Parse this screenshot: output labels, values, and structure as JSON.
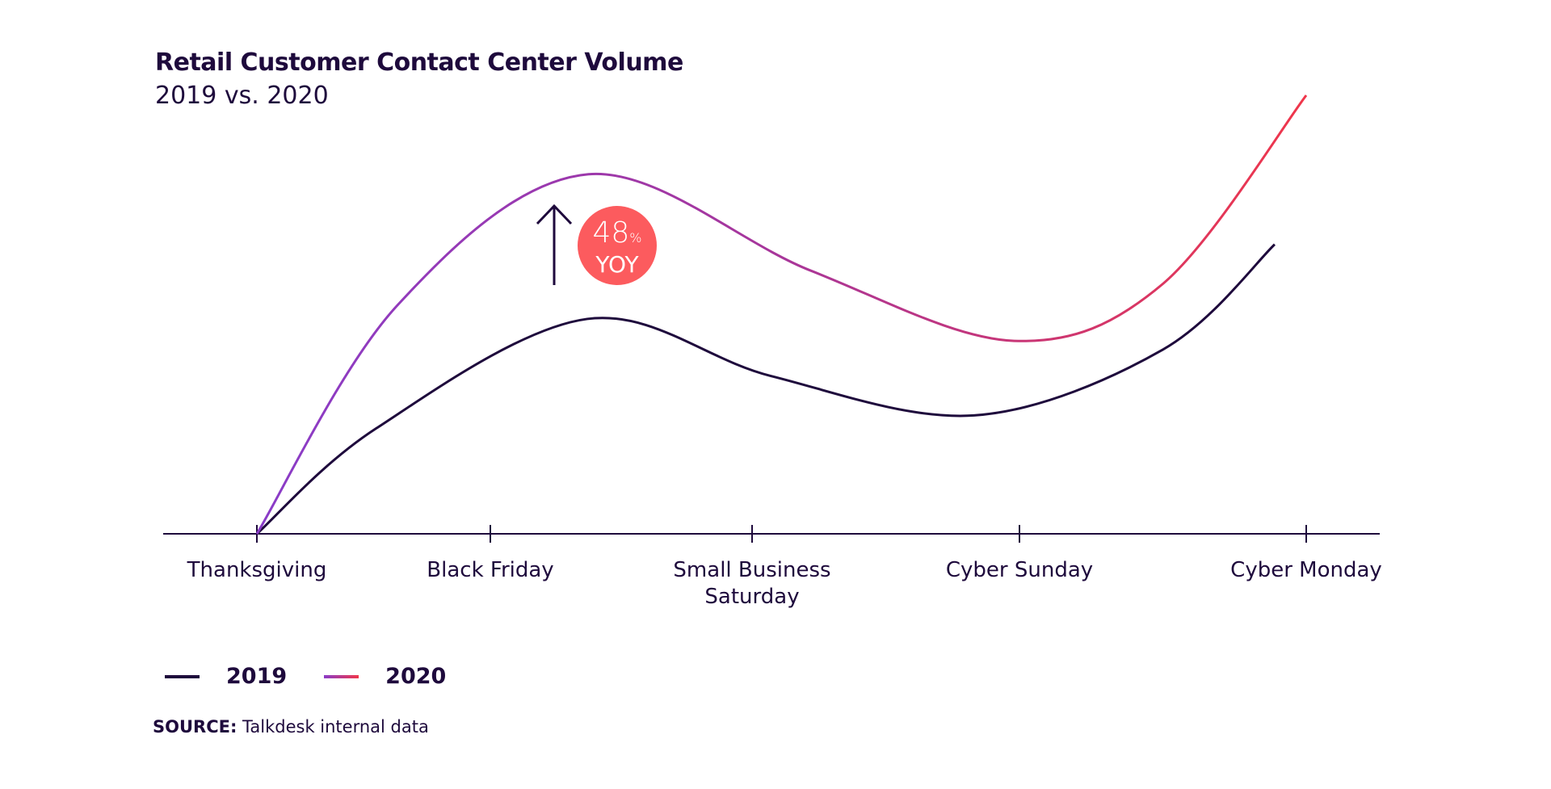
{
  "title": "Retail Customer Contact Center Volume",
  "subtitle": "2019 vs. 2020",
  "annotation": {
    "value": "48",
    "unit": "%",
    "label": "YOY"
  },
  "source": {
    "label": "SOURCE:",
    "text": "Talkdesk internal data"
  },
  "colors": {
    "2019": "#1e0a3c",
    "2020_start": "#8a3cc8",
    "2020_mid": "#a8369a",
    "2020_end": "#f0364a",
    "badge": "#fc5b5e",
    "axis": "#1e0a3c"
  },
  "chart_data": {
    "type": "line",
    "title": "Retail Customer Contact Center Volume",
    "subtitle": "2019 vs. 2020",
    "categories": [
      "Thanksgiving",
      "Black Friday",
      "Small Business Saturday",
      "Cyber Sunday",
      "Cyber Monday"
    ],
    "category_lines": [
      [
        "Thanksgiving"
      ],
      [
        "Black Friday"
      ],
      [
        "Small Business",
        "Saturday"
      ],
      [
        "Cyber Sunday"
      ],
      [
        "Cyber Monday"
      ]
    ],
    "y_axis_labeled": false,
    "ylim": [
      0,
      100
    ],
    "grid": false,
    "legend": "bottom-left",
    "series": [
      {
        "name": "2019",
        "points": [
          [
            0,
            0
          ],
          [
            0.51,
            24
          ],
          [
            1.37,
            49
          ],
          [
            2.07,
            36
          ],
          [
            2.83,
            27
          ],
          [
            3.5,
            42
          ],
          [
            3.89,
            66
          ]
        ]
      },
      {
        "name": "2020",
        "points": [
          [
            0,
            0
          ],
          [
            0.6,
            52
          ],
          [
            1.375,
            82
          ],
          [
            2.22,
            60
          ],
          [
            2.98,
            44
          ],
          [
            3.5,
            57
          ],
          [
            4.0,
            100
          ]
        ]
      }
    ]
  }
}
